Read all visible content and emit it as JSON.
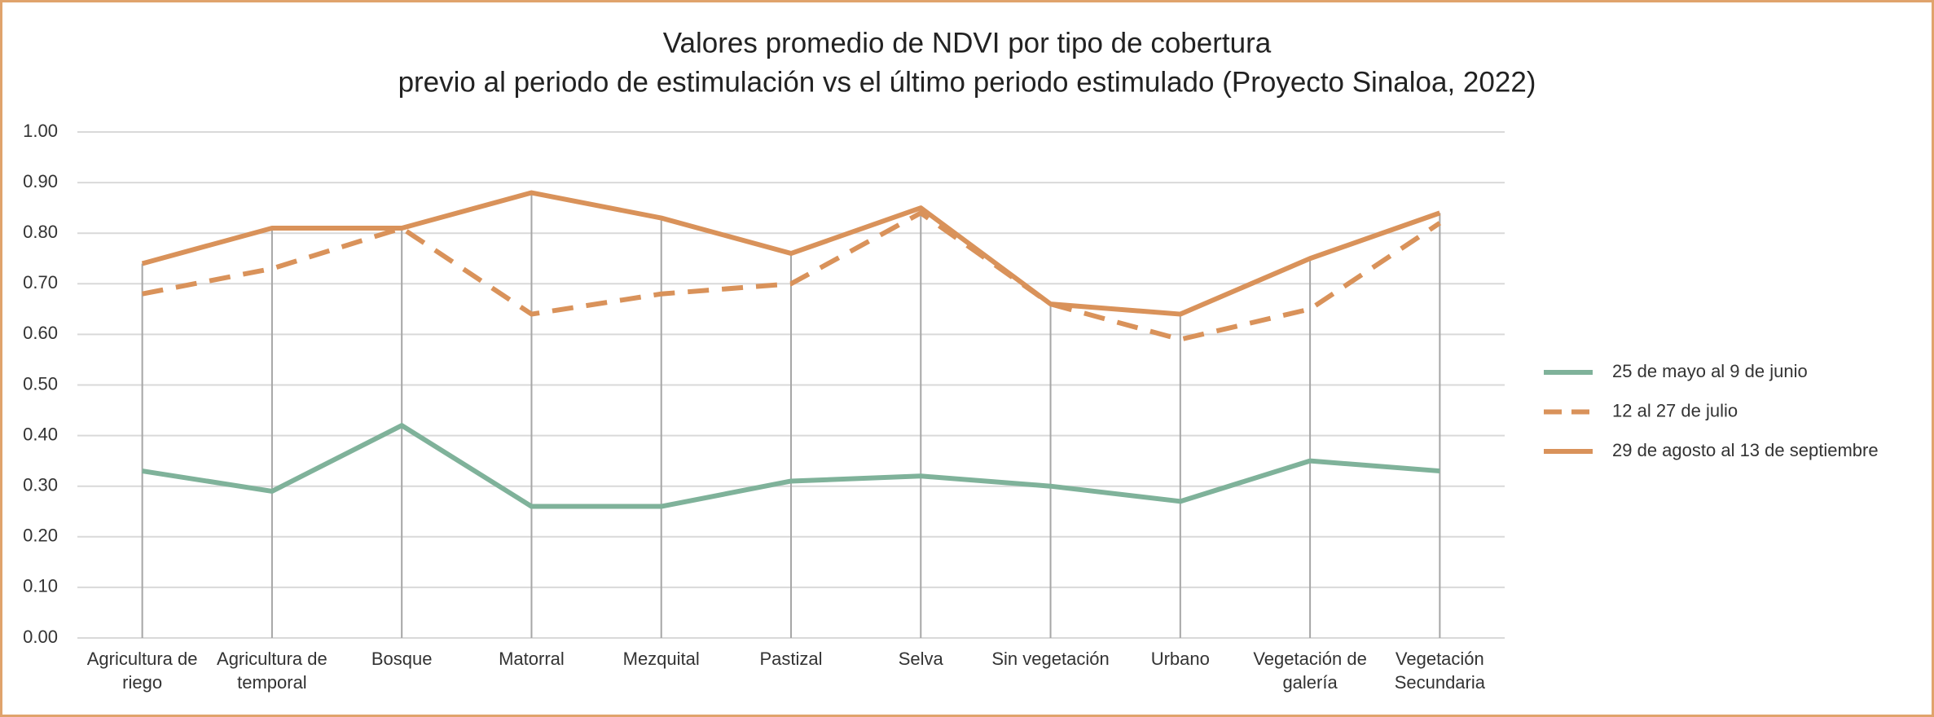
{
  "chart_data": {
    "type": "line",
    "title": "Valores promedio de NDVI por tipo de cobertura",
    "subtitle": "previo al periodo de estimulación vs el último periodo estimulado (Proyecto Sinaloa, 2022)",
    "categories": [
      "Agricultura de riego",
      "Agricultura de temporal",
      "Bosque",
      "Matorral",
      "Mezquital",
      "Pastizal",
      "Selva",
      "Sin vegetación",
      "Urbano",
      "Vegetación de galería",
      "Vegetación Secundaria"
    ],
    "series": [
      {
        "name": "25 de mayo al 9 de junio",
        "color": "#7fb29a",
        "dash": false,
        "values": [
          0.33,
          0.29,
          0.42,
          0.26,
          0.26,
          0.31,
          0.32,
          0.3,
          0.27,
          0.35,
          0.33
        ]
      },
      {
        "name": "12 al 27 de julio",
        "color": "#d9925a",
        "dash": true,
        "values": [
          0.68,
          0.73,
          0.81,
          0.64,
          0.68,
          0.7,
          0.84,
          0.66,
          0.59,
          0.65,
          0.82
        ]
      },
      {
        "name": "29 de agosto al 13 de septiembre",
        "color": "#d9925a",
        "dash": false,
        "values": [
          0.74,
          0.81,
          0.81,
          0.88,
          0.83,
          0.76,
          0.85,
          0.66,
          0.64,
          0.75,
          0.84
        ]
      }
    ],
    "ylim": [
      0,
      1
    ],
    "yticks": [
      {
        "value": 0,
        "label": "0.00"
      },
      {
        "value": 0.1,
        "label": "0.10"
      },
      {
        "value": 0.2,
        "label": "0.20"
      },
      {
        "value": 0.3,
        "label": "0.30"
      },
      {
        "value": 0.4,
        "label": "0.40"
      },
      {
        "value": 0.5,
        "label": "0.50"
      },
      {
        "value": 0.6,
        "label": "0.60"
      },
      {
        "value": 0.7,
        "label": "0.70"
      },
      {
        "value": 0.8,
        "label": "0.80"
      },
      {
        "value": 0.9,
        "label": "0.90"
      },
      {
        "value": 1,
        "label": "1.00"
      }
    ],
    "grid": true,
    "legend": "right"
  }
}
